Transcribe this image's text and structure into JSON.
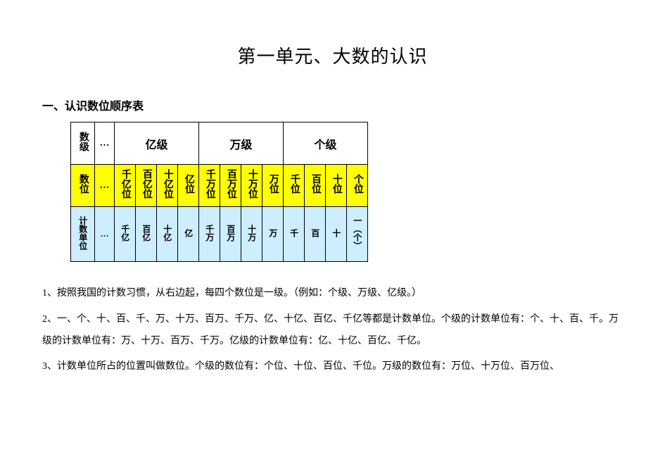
{
  "title": "第一单元、大数的认识",
  "section1_heading": "一、认识数位顺序表",
  "table": {
    "colors": {
      "row1_bg": "#ffffff",
      "row2_bg": "#ffff00",
      "row3_bg": "#cceeff",
      "border": "#000000"
    },
    "row1": {
      "label": "数级",
      "ellipsis": "…",
      "groups": [
        "亿级",
        "万级",
        "个级"
      ]
    },
    "row2": {
      "label": "数位",
      "ellipsis": "…",
      "cells": [
        "千亿位",
        "百亿位",
        "十亿位",
        "亿位",
        "千万位",
        "百万位",
        "十万位",
        "万位",
        "千位",
        "百位",
        "十位",
        "个位"
      ]
    },
    "row3": {
      "label": "计数单位",
      "ellipsis": "…",
      "cells": [
        "千亿",
        "百亿",
        "十亿",
        "亿",
        "千万",
        "百万",
        "十万",
        "万",
        "千",
        "百",
        "十",
        "一（个）"
      ]
    }
  },
  "paragraphs": {
    "p1": "1、按照我国的计数习惯，从右边起，每四个数位是一级。（例如：个级、万级、亿级。）",
    "p2": "2、一、个、十、百、千、万、十万、百万、千万、亿、十亿、百亿、千亿等都是计数单位。个级的计数单位有：个、十、百、千。万级的计数单位有：万、十万、百万、千万。亿级的计数单位有：亿、十亿、百亿、千亿。",
    "p3": "3、计数单位所占的位置叫做数位。个级的数位有：个位、十位、百位、千位。万级的数位有：万位、十万位、百万位、"
  }
}
